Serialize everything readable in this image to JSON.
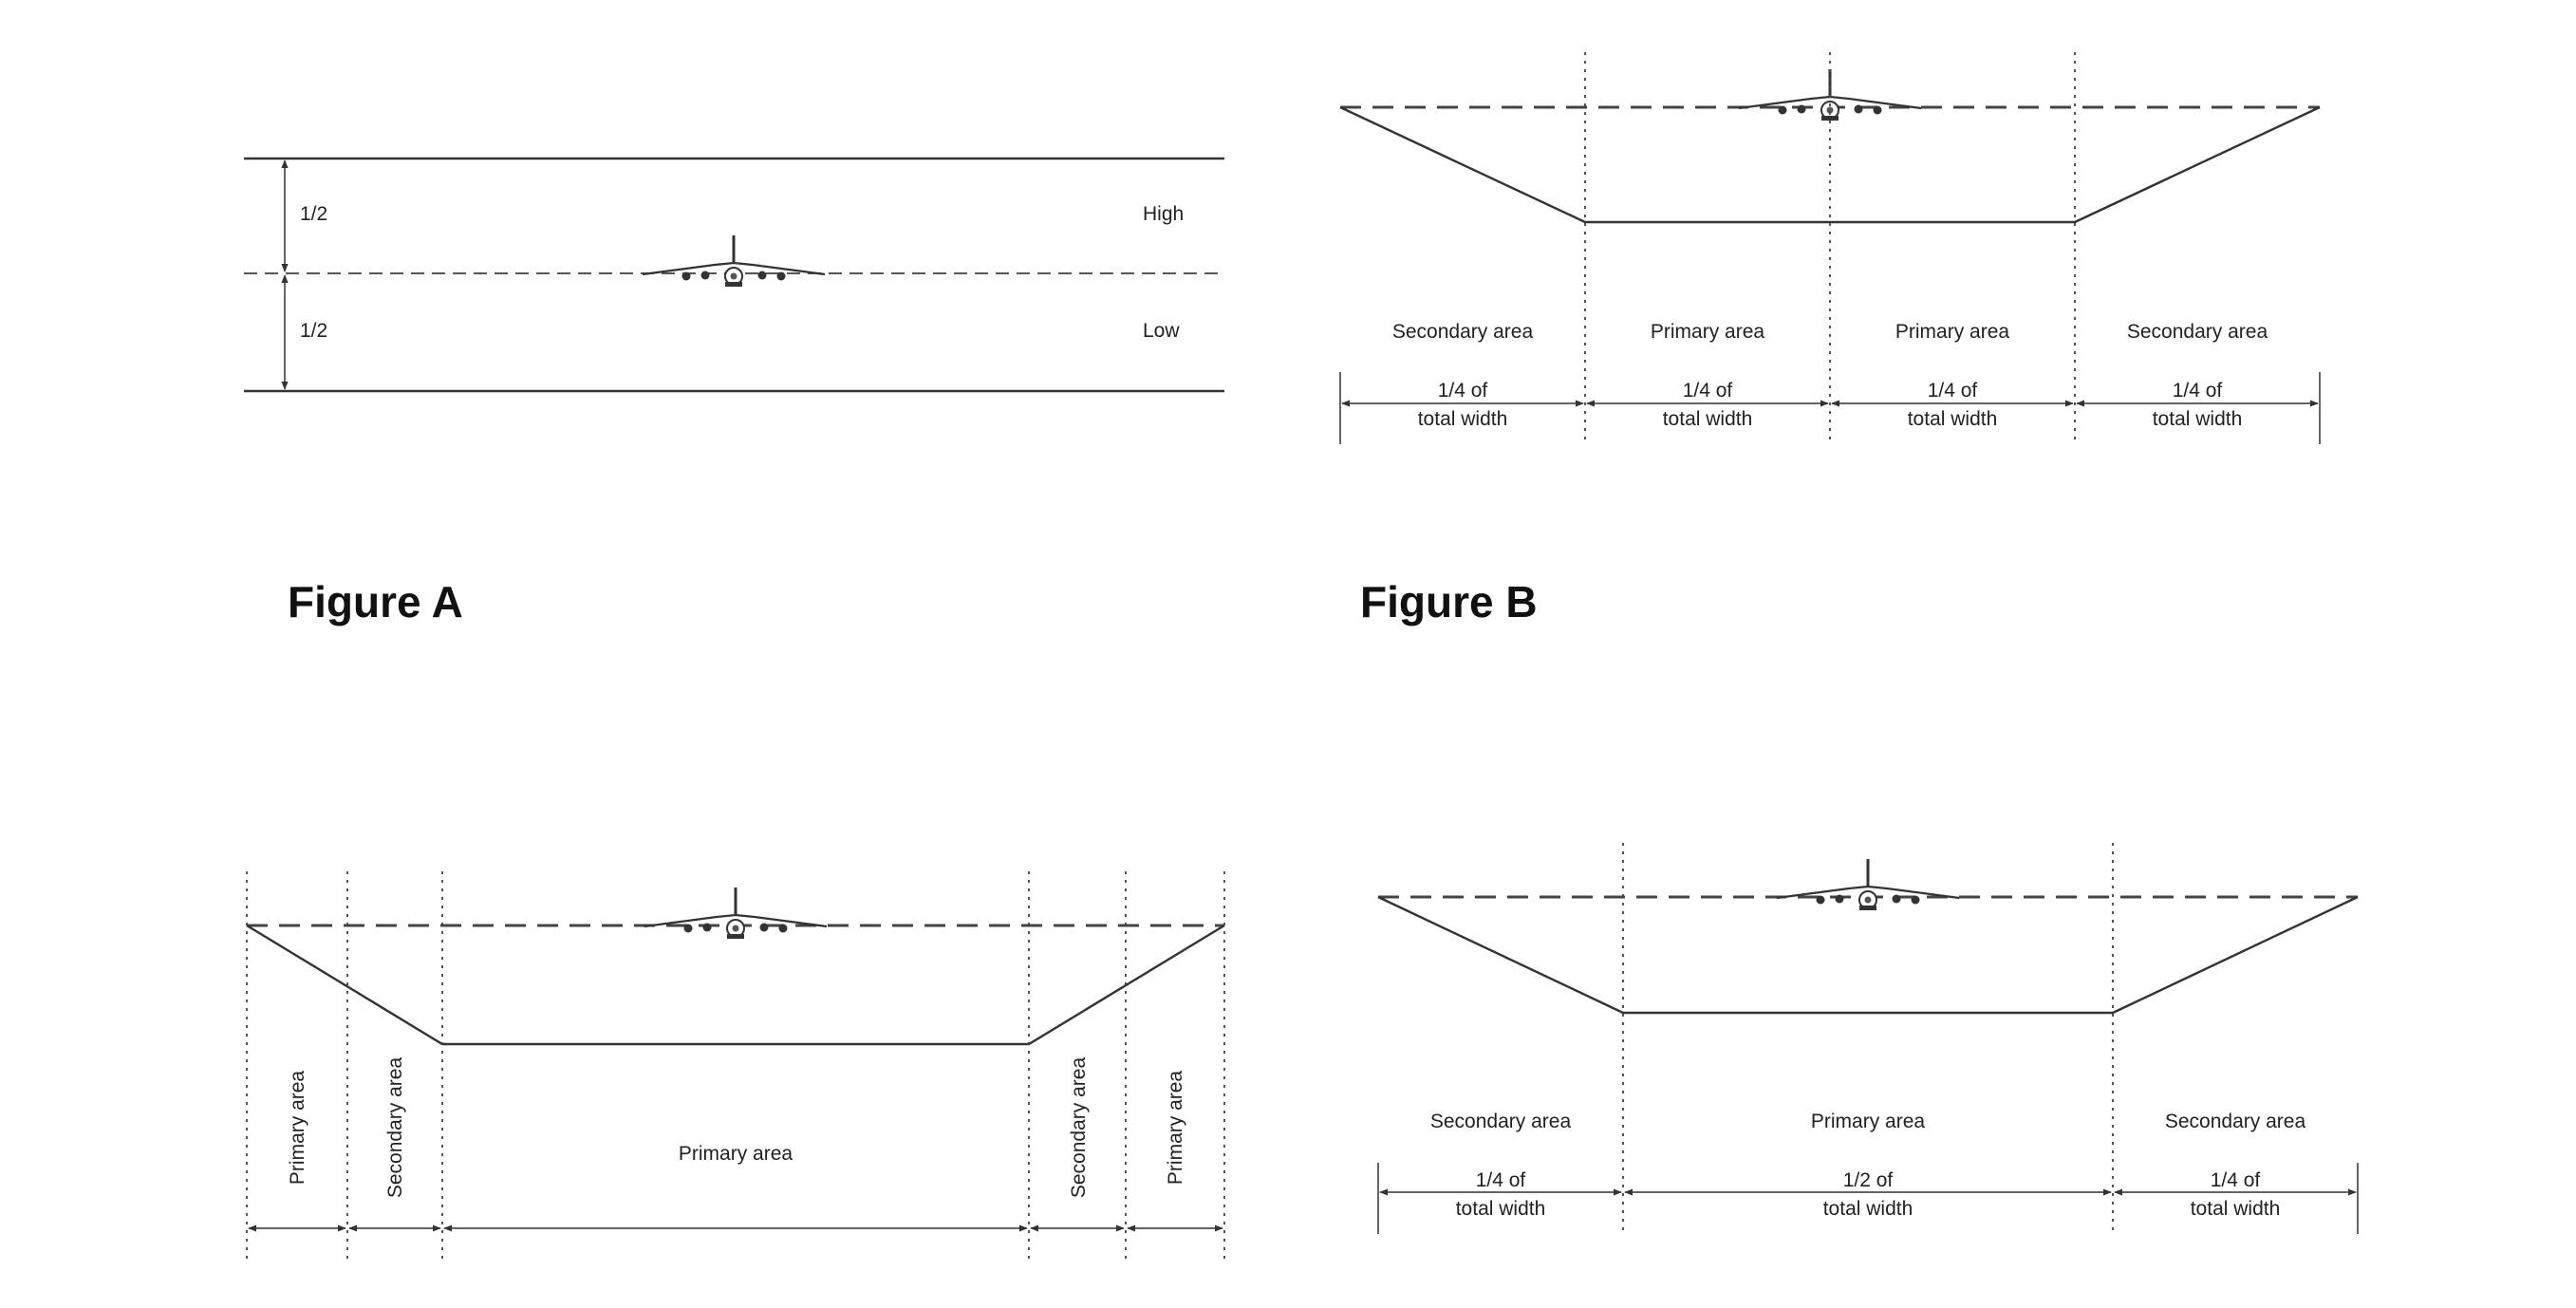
{
  "figure_a": {
    "caption": "Figure A",
    "upper_fraction": "1/2",
    "lower_fraction": "1/2",
    "high_label": "High",
    "low_label": "Low"
  },
  "figure_b": {
    "caption": "Figure B",
    "areas": [
      "Secondary area",
      "Primary area",
      "Primary area",
      "Secondary area"
    ],
    "widths": [
      {
        "line1": "1/4 of",
        "line2": "total width"
      },
      {
        "line1": "1/4 of",
        "line2": "total width"
      },
      {
        "line1": "1/4 of",
        "line2": "total width"
      },
      {
        "line1": "1/4 of",
        "line2": "total width"
      }
    ]
  },
  "figure_c": {
    "areas_vertical": [
      "Primary area",
      "Secondary area",
      "Secondary area",
      "Primary area"
    ],
    "center_area": "Primary area"
  },
  "figure_d": {
    "areas": [
      "Secondary area",
      "Primary area",
      "Secondary area"
    ],
    "widths": [
      {
        "line1": "1/4 of",
        "line2": "total width"
      },
      {
        "line1": "1/2 of",
        "line2": "total width"
      },
      {
        "line1": "1/4 of",
        "line2": "total width"
      }
    ]
  }
}
